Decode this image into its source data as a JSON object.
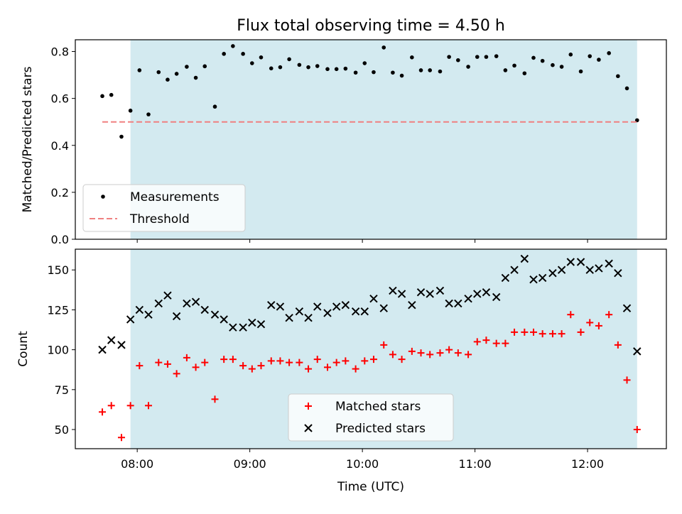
{
  "chart_data": [
    {
      "type": "scatter",
      "title": "Flux total observing time = 4.50 h",
      "ylabel": "Matched/Predicted stars",
      "xlabel": "",
      "ylim": [
        0,
        0.85
      ],
      "y_ticks": [
        0.0,
        0.2,
        0.4,
        0.6,
        0.8
      ],
      "y_tick_labels": [
        "0.0",
        "0.2",
        "0.4",
        "0.6",
        "0.8"
      ],
      "x_range_hours": [
        7.45,
        12.7
      ],
      "x_ticks_hours": [
        8,
        9,
        10,
        11,
        12
      ],
      "x_tick_labels": [
        "08:00",
        "09:00",
        "10:00",
        "11:00",
        "12:00"
      ],
      "shaded_interval_hours": [
        7.94,
        12.44
      ],
      "shaded_color": "#d3eaf0",
      "legend_position": "lower-left",
      "series": [
        {
          "name": "Measurements",
          "marker": "dot",
          "color": "#000000",
          "x": [
            7.69,
            7.77,
            7.86,
            7.94,
            8.02,
            8.1,
            8.19,
            8.27,
            8.35,
            8.44,
            8.52,
            8.6,
            8.69,
            8.77,
            8.85,
            8.94,
            9.02,
            9.1,
            9.19,
            9.27,
            9.35,
            9.44,
            9.52,
            9.6,
            9.69,
            9.77,
            9.85,
            9.94,
            10.02,
            10.1,
            10.19,
            10.27,
            10.35,
            10.44,
            10.52,
            10.6,
            10.69,
            10.77,
            10.85,
            10.94,
            11.02,
            11.1,
            11.19,
            11.27,
            11.35,
            11.44,
            11.52,
            11.6,
            11.69,
            11.77,
            11.85,
            11.94,
            12.02,
            12.1,
            12.19,
            12.27,
            12.35,
            12.44
          ],
          "y": [
            0.61,
            0.615,
            0.437,
            0.548,
            0.72,
            0.532,
            0.712,
            0.68,
            0.705,
            0.735,
            0.688,
            0.737,
            0.565,
            0.79,
            0.823,
            0.79,
            0.75,
            0.775,
            0.728,
            0.733,
            0.767,
            0.743,
            0.733,
            0.738,
            0.725,
            0.725,
            0.727,
            0.71,
            0.75,
            0.712,
            0.817,
            0.71,
            0.697,
            0.775,
            0.72,
            0.72,
            0.715,
            0.777,
            0.763,
            0.735,
            0.777,
            0.777,
            0.78,
            0.72,
            0.74,
            0.707,
            0.773,
            0.76,
            0.742,
            0.735,
            0.787,
            0.715,
            0.78,
            0.765,
            0.793,
            0.695,
            0.643,
            0.507
          ]
        },
        {
          "name": "Threshold",
          "marker": "dashed-line",
          "color": "#f08080",
          "x": [
            7.69,
            12.44
          ],
          "y": [
            0.5,
            0.5
          ]
        }
      ]
    },
    {
      "type": "scatter",
      "title": "",
      "ylabel": "Count",
      "xlabel": "Time (UTC)",
      "ylim": [
        38,
        163
      ],
      "y_ticks": [
        50,
        75,
        100,
        125,
        150
      ],
      "y_tick_labels": [
        "50",
        "75",
        "100",
        "125",
        "150"
      ],
      "x_range_hours": [
        7.45,
        12.7
      ],
      "x_ticks_hours": [
        8,
        9,
        10,
        11,
        12
      ],
      "x_tick_labels": [
        "08:00",
        "09:00",
        "10:00",
        "11:00",
        "12:00"
      ],
      "shaded_interval_hours": [
        7.94,
        12.44
      ],
      "shaded_color": "#d3eaf0",
      "legend_position": "lower-center",
      "series": [
        {
          "name": "Matched stars",
          "marker": "plus",
          "color": "#ff0000",
          "x": [
            7.69,
            7.77,
            7.86,
            7.94,
            8.02,
            8.1,
            8.19,
            8.27,
            8.35,
            8.44,
            8.52,
            8.6,
            8.69,
            8.77,
            8.85,
            8.94,
            9.02,
            9.1,
            9.19,
            9.27,
            9.35,
            9.44,
            9.52,
            9.6,
            9.69,
            9.77,
            9.85,
            9.94,
            10.02,
            10.1,
            10.19,
            10.27,
            10.35,
            10.44,
            10.52,
            10.6,
            10.69,
            10.77,
            10.85,
            10.94,
            11.02,
            11.1,
            11.19,
            11.27,
            11.35,
            11.44,
            11.52,
            11.6,
            11.69,
            11.77,
            11.85,
            11.94,
            12.02,
            12.1,
            12.19,
            12.27,
            12.35,
            12.44
          ],
          "y": [
            61,
            65,
            45,
            65,
            90,
            65,
            92,
            91,
            85,
            95,
            89,
            92,
            69,
            94,
            94,
            90,
            88,
            90,
            93,
            93,
            92,
            92,
            88,
            94,
            89,
            92,
            93,
            88,
            93,
            94,
            103,
            97,
            94,
            99,
            98,
            97,
            98,
            100,
            98,
            97,
            105,
            106,
            104,
            104,
            111,
            111,
            111,
            110,
            110,
            110,
            122,
            111,
            117,
            115,
            122,
            103,
            81,
            50
          ]
        },
        {
          "name": "Predicted stars",
          "marker": "x",
          "color": "#000000",
          "x": [
            7.69,
            7.77,
            7.86,
            7.94,
            8.02,
            8.1,
            8.19,
            8.27,
            8.35,
            8.44,
            8.52,
            8.6,
            8.69,
            8.77,
            8.85,
            8.94,
            9.02,
            9.1,
            9.19,
            9.27,
            9.35,
            9.44,
            9.52,
            9.6,
            9.69,
            9.77,
            9.85,
            9.94,
            10.02,
            10.1,
            10.19,
            10.27,
            10.35,
            10.44,
            10.52,
            10.6,
            10.69,
            10.77,
            10.85,
            10.94,
            11.02,
            11.1,
            11.19,
            11.27,
            11.35,
            11.44,
            11.52,
            11.6,
            11.69,
            11.77,
            11.85,
            11.94,
            12.02,
            12.1,
            12.19,
            12.27,
            12.35,
            12.44
          ],
          "y": [
            100,
            106,
            103,
            119,
            125,
            122,
            129,
            134,
            121,
            129,
            130,
            125,
            122,
            119,
            114,
            114,
            117,
            116,
            128,
            127,
            120,
            124,
            120,
            127,
            123,
            127,
            128,
            124,
            124,
            132,
            126,
            137,
            135,
            128,
            136,
            135,
            137,
            129,
            129,
            132,
            135,
            136,
            133,
            145,
            150,
            157,
            144,
            145,
            148,
            150,
            155,
            155,
            150,
            151,
            154,
            148,
            126,
            99
          ]
        }
      ]
    }
  ]
}
